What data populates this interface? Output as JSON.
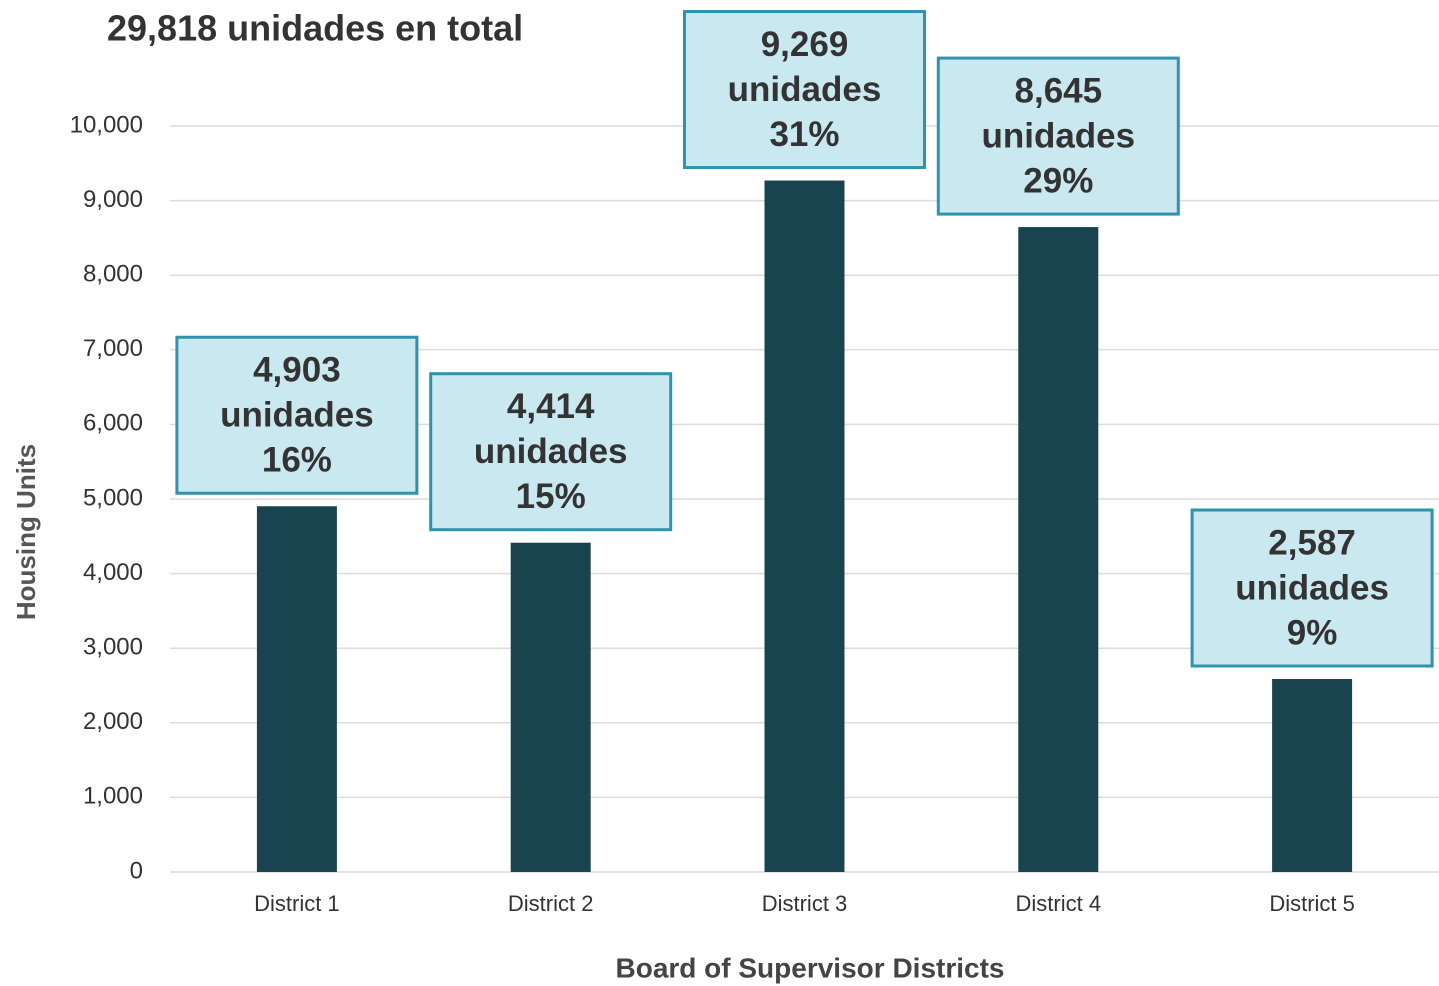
{
  "chart_data": {
    "type": "bar",
    "title": "29,818 unidades en total",
    "x_label": "Board of Supervisor Districts",
    "y_label": "Housing Units",
    "categories": [
      "District 1",
      "District 2",
      "District 3",
      "District 4",
      "District 5"
    ],
    "values": [
      4903,
      4414,
      9269,
      8645,
      2587
    ],
    "value_labels": [
      "4,903",
      "4,414",
      "9,269",
      "8,645",
      "2,587"
    ],
    "unit_label": "unidades",
    "percent_labels": [
      "16%",
      "15%",
      "31%",
      "29%",
      "9%"
    ],
    "color": "#1a4350",
    "label_box_color": "#c9e8f0",
    "label_box_border": "#2e93ad",
    "ylim": [
      0,
      10000
    ],
    "yticks": [
      0,
      {
        "value": 1000,
        "label": "1,000"
      },
      {
        "value": 2000,
        "label": "2,000"
      },
      {
        "value": 3000,
        "label": "3,000"
      },
      {
        "value": 4000,
        "label": "4,000"
      },
      {
        "value": 5000,
        "label": "5,000"
      },
      {
        "value": 6000,
        "label": "6,000"
      },
      {
        "value": 7000,
        "label": "7,000"
      },
      {
        "value": 8000,
        "label": "8,000"
      },
      {
        "value": 9000,
        "label": "9,000"
      },
      {
        "value": 10000,
        "label": "10,000"
      }
    ],
    "grid": true
  }
}
